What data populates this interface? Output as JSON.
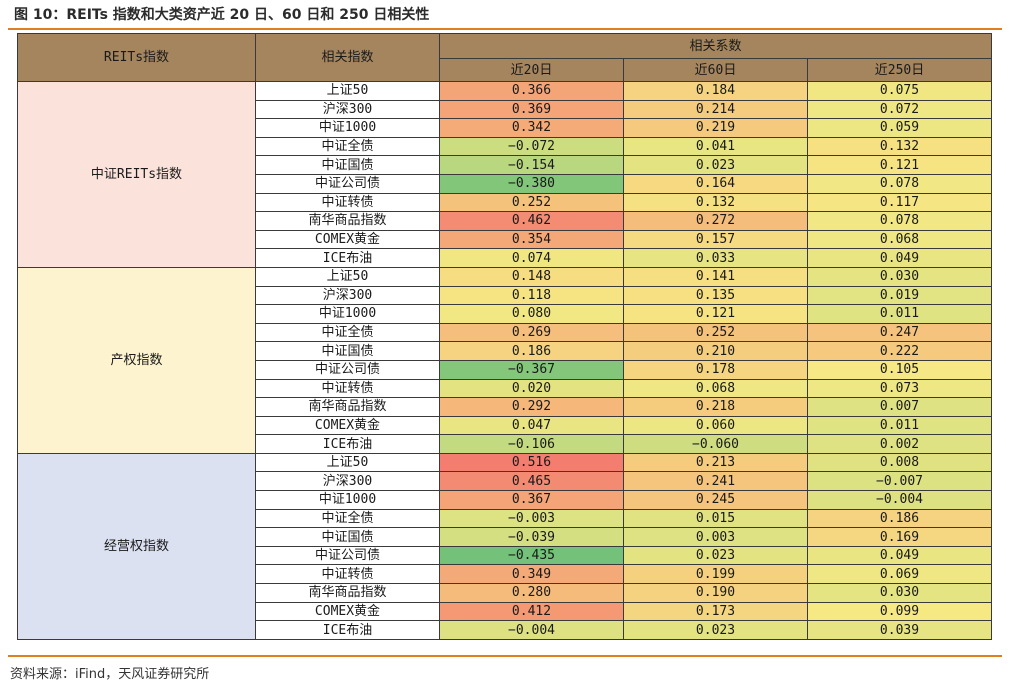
{
  "title": "图 10：REITs 指数和大类资产近 20 日、60 日和 250 日相关性",
  "source": "资料来源：iFind，天风证券研究所",
  "table": {
    "col_headers": {
      "group": "REITs指数",
      "index": "相关指数",
      "corr": "相关系数",
      "d20": "近20日",
      "d60": "近60日",
      "d250": "近250日"
    },
    "groups": [
      {
        "name": "中证REITs指数",
        "color": "#fbe3dc",
        "rows": [
          {
            "index": "上证50",
            "d20": "0.366",
            "d60": "0.184",
            "d250": "0.075"
          },
          {
            "index": "沪深300",
            "d20": "0.369",
            "d60": "0.214",
            "d250": "0.072"
          },
          {
            "index": "中证1000",
            "d20": "0.342",
            "d60": "0.219",
            "d250": "0.059"
          },
          {
            "index": "中证全债",
            "d20": "−0.072",
            "d60": "0.041",
            "d250": "0.132"
          },
          {
            "index": "中证国债",
            "d20": "−0.154",
            "d60": "0.023",
            "d250": "0.121"
          },
          {
            "index": "中证公司债",
            "d20": "−0.380",
            "d60": "0.164",
            "d250": "0.078"
          },
          {
            "index": "中证转债",
            "d20": "0.252",
            "d60": "0.132",
            "d250": "0.117"
          },
          {
            "index": "南华商品指数",
            "d20": "0.462",
            "d60": "0.272",
            "d250": "0.078"
          },
          {
            "index": "COMEX黄金",
            "d20": "0.354",
            "d60": "0.157",
            "d250": "0.068"
          },
          {
            "index": "ICE布油",
            "d20": "0.074",
            "d60": "0.033",
            "d250": "0.049"
          }
        ]
      },
      {
        "name": "产权指数",
        "color": "#fdf3cf",
        "rows": [
          {
            "index": "上证50",
            "d20": "0.148",
            "d60": "0.141",
            "d250": "0.030"
          },
          {
            "index": "沪深300",
            "d20": "0.118",
            "d60": "0.135",
            "d250": "0.019"
          },
          {
            "index": "中证1000",
            "d20": "0.080",
            "d60": "0.121",
            "d250": "0.011"
          },
          {
            "index": "中证全债",
            "d20": "0.269",
            "d60": "0.252",
            "d250": "0.247"
          },
          {
            "index": "中证国债",
            "d20": "0.186",
            "d60": "0.210",
            "d250": "0.222"
          },
          {
            "index": "中证公司债",
            "d20": "−0.367",
            "d60": "0.178",
            "d250": "0.105"
          },
          {
            "index": "中证转债",
            "d20": "0.020",
            "d60": "0.068",
            "d250": "0.073"
          },
          {
            "index": "南华商品指数",
            "d20": "0.292",
            "d60": "0.218",
            "d250": "0.007"
          },
          {
            "index": "COMEX黄金",
            "d20": "0.047",
            "d60": "0.060",
            "d250": "0.011"
          },
          {
            "index": "ICE布油",
            "d20": "−0.106",
            "d60": "−0.060",
            "d250": "0.002"
          }
        ]
      },
      {
        "name": "经营权指数",
        "color": "#dce1f2",
        "rows": [
          {
            "index": "上证50",
            "d20": "0.516",
            "d60": "0.213",
            "d250": "0.008"
          },
          {
            "index": "沪深300",
            "d20": "0.465",
            "d60": "0.241",
            "d250": "−0.007"
          },
          {
            "index": "中证1000",
            "d20": "0.367",
            "d60": "0.245",
            "d250": "−0.004"
          },
          {
            "index": "中证全债",
            "d20": "−0.003",
            "d60": "0.015",
            "d250": "0.186"
          },
          {
            "index": "中证国债",
            "d20": "−0.039",
            "d60": "0.003",
            "d250": "0.169"
          },
          {
            "index": "中证公司债",
            "d20": "−0.435",
            "d60": "0.023",
            "d250": "0.049"
          },
          {
            "index": "中证转债",
            "d20": "0.349",
            "d60": "0.199",
            "d250": "0.069"
          },
          {
            "index": "南华商品指数",
            "d20": "0.280",
            "d60": "0.190",
            "d250": "0.030"
          },
          {
            "index": "COMEX黄金",
            "d20": "0.412",
            "d60": "0.173",
            "d250": "0.099"
          },
          {
            "index": "ICE布油",
            "d20": "−0.004",
            "d60": "0.023",
            "d250": "0.039"
          }
        ]
      }
    ],
    "heat_scale": {
      "low": "#73c279",
      "mid": "#f6e984",
      "high": "#f37d6f"
    }
  }
}
